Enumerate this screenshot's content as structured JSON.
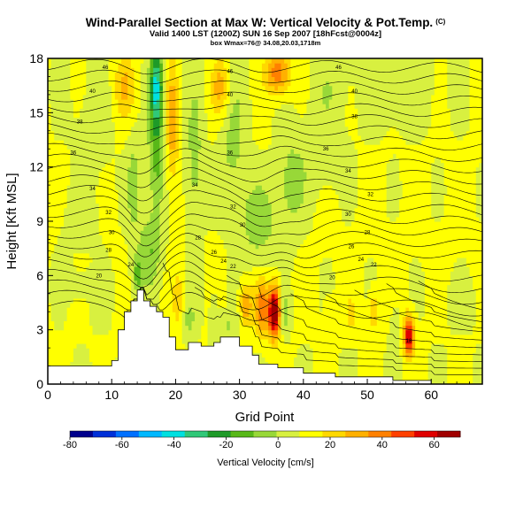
{
  "header": {
    "title": "Wind-Parallel Section at Max W: Vertical Velocity & Pot.Temp.",
    "title_mark": "(C)",
    "subtitle": "Valid 1400 LST (1200Z) SUN 16 Sep 2007 [18hFcst@0004z]",
    "subtitle2": "box Wmax=76@ 34.08,20.03,1718m"
  },
  "chart_data": {
    "type": "heatmap",
    "xlabel": "Grid Point",
    "ylabel": "Height [Kft MSL]",
    "xlim": [
      0,
      68
    ],
    "ylim": [
      0,
      18
    ],
    "xticks": [
      0,
      10,
      20,
      30,
      40,
      50,
      60
    ],
    "yticks": [
      0,
      3,
      6,
      9,
      12,
      15,
      18
    ],
    "colorbar": {
      "label": "Vertical Velocity [cm/s]",
      "ticks": [
        -80,
        -60,
        -40,
        -20,
        0,
        20,
        40,
        60
      ],
      "range": [
        -80,
        70
      ],
      "colors": [
        "#00008c",
        "#0030d8",
        "#0070ff",
        "#00b8ff",
        "#00e0e0",
        "#30c878",
        "#1e9a28",
        "#58b818",
        "#98d838",
        "#d8f040",
        "#ffff00",
        "#ffd800",
        "#ffb000",
        "#ff8000",
        "#ff4000",
        "#e00000",
        "#a00000"
      ]
    },
    "terrain": [
      [
        0,
        1
      ],
      [
        10,
        1
      ],
      [
        10,
        1.3
      ],
      [
        11,
        1.3
      ],
      [
        11,
        3
      ],
      [
        12,
        3
      ],
      [
        12,
        4
      ],
      [
        13,
        4
      ],
      [
        13,
        4.6
      ],
      [
        14,
        4.6
      ],
      [
        14,
        5.2
      ],
      [
        15,
        5.2
      ],
      [
        15,
        4.6
      ],
      [
        16,
        4.6
      ],
      [
        16,
        4.3
      ],
      [
        17,
        4.3
      ],
      [
        17,
        4
      ],
      [
        18,
        4
      ],
      [
        18,
        3.7
      ],
      [
        19,
        3.7
      ],
      [
        19,
        2.6
      ],
      [
        20,
        2.6
      ],
      [
        20,
        1.9
      ],
      [
        22,
        1.9
      ],
      [
        22,
        2.3
      ],
      [
        24,
        2.3
      ],
      [
        24,
        2.1
      ],
      [
        26,
        2.1
      ],
      [
        26,
        2.3
      ],
      [
        27,
        2.3
      ],
      [
        27,
        2.6
      ],
      [
        30,
        2.6
      ],
      [
        30,
        2.1
      ],
      [
        32,
        2.1
      ],
      [
        32,
        1.6
      ],
      [
        33,
        1.6
      ],
      [
        33,
        1.1
      ],
      [
        36,
        1.1
      ],
      [
        36,
        0.9
      ],
      [
        40,
        0.9
      ],
      [
        40,
        0.6
      ],
      [
        45,
        0.6
      ],
      [
        45,
        0.4
      ],
      [
        54,
        0.4
      ],
      [
        54,
        0.2
      ],
      [
        60,
        0.2
      ],
      [
        60,
        0
      ],
      [
        68,
        0
      ]
    ],
    "w_features": [
      {
        "x": 17,
        "z": 16.5,
        "w": -45,
        "sx": 1.0,
        "sz": 2.2
      },
      {
        "x": 17,
        "z": 12.5,
        "w": -22,
        "sx": 1.3,
        "sz": 3.0
      },
      {
        "x": 13.5,
        "z": 11,
        "w": -14,
        "sx": 1.2,
        "sz": 2.8
      },
      {
        "x": 16,
        "z": 7.5,
        "w": -18,
        "sx": 1.8,
        "sz": 2.0
      },
      {
        "x": 19.5,
        "z": 14.5,
        "w": 22,
        "sx": 1.0,
        "sz": 3.5
      },
      {
        "x": 12,
        "z": 16.5,
        "w": 18,
        "sx": 1.6,
        "sz": 1.8
      },
      {
        "x": 27,
        "z": 16.5,
        "w": 22,
        "sx": 1.4,
        "sz": 1.6
      },
      {
        "x": 36,
        "z": 17.2,
        "w": 32,
        "sx": 2.0,
        "sz": 1.2
      },
      {
        "x": 23,
        "z": 12,
        "w": -14,
        "sx": 1.4,
        "sz": 4.5
      },
      {
        "x": 29,
        "z": 13,
        "w": -12,
        "sx": 2.2,
        "sz": 4.0
      },
      {
        "x": 33,
        "z": 9,
        "w": -16,
        "sx": 2.8,
        "sz": 2.2
      },
      {
        "x": 38,
        "z": 11,
        "w": -14,
        "sx": 2.2,
        "sz": 2.8
      },
      {
        "x": 43,
        "z": 13,
        "w": -8,
        "sx": 3.5,
        "sz": 2.5
      },
      {
        "x": 44,
        "z": 16.5,
        "w": -6,
        "sx": 3.0,
        "sz": 1.5
      },
      {
        "x": 55,
        "z": 16,
        "w": -6,
        "sx": 6.0,
        "sz": 2.0
      },
      {
        "x": 7,
        "z": 14,
        "w": -6,
        "sx": 3.0,
        "sz": 3.0
      },
      {
        "x": 5,
        "z": 9,
        "w": -5,
        "sx": 4.0,
        "sz": 2.0
      },
      {
        "x": 5,
        "z": 5.5,
        "w": -8,
        "sx": 4.0,
        "sz": 0.8
      },
      {
        "x": 35.5,
        "z": 4.0,
        "w": 68,
        "sx": 0.9,
        "sz": 1.4
      },
      {
        "x": 33.5,
        "z": 4.2,
        "w": 32,
        "sx": 1.2,
        "sz": 1.4
      },
      {
        "x": 31,
        "z": 4.4,
        "w": 26,
        "sx": 0.9,
        "sz": 1.2
      },
      {
        "x": 37,
        "z": 4.0,
        "w": -14,
        "sx": 0.8,
        "sz": 1.3
      },
      {
        "x": 56.5,
        "z": 2.7,
        "w": 55,
        "sx": 0.8,
        "sz": 1.1
      },
      {
        "x": 54.5,
        "z": 3.0,
        "w": -10,
        "sx": 0.8,
        "sz": 1.2
      },
      {
        "x": 51,
        "z": 4.0,
        "w": 18,
        "sx": 0.8,
        "sz": 1.1
      },
      {
        "x": 47.5,
        "z": 3.8,
        "w": 12,
        "sx": 0.7,
        "sz": 1.0
      },
      {
        "x": 44,
        "z": 3.8,
        "w": 8,
        "sx": 0.8,
        "sz": 1.0
      },
      {
        "x": 28,
        "z": 3.2,
        "w": -10,
        "sx": 1.8,
        "sz": 0.8
      },
      {
        "x": 26,
        "z": 4.2,
        "w": -8,
        "sx": 0.7,
        "sz": 1.1
      },
      {
        "x": 22,
        "z": 3.6,
        "w": -12,
        "sx": 1.2,
        "sz": 1.0
      },
      {
        "x": 20.5,
        "z": 4.6,
        "w": 16,
        "sx": 0.9,
        "sz": 1.4
      },
      {
        "x": 14,
        "z": 6,
        "w": -20,
        "sx": 0.9,
        "sz": 1.0
      },
      {
        "x": 8,
        "z": 4.2,
        "w": -5,
        "sx": 1.5,
        "sz": 1.0
      },
      {
        "x": 65,
        "z": 4.5,
        "w": -6,
        "sx": 2.5,
        "sz": 1.2
      }
    ],
    "theta_contour_labels": [
      {
        "x": 9,
        "z": 17.5,
        "t": "46"
      },
      {
        "x": 28.5,
        "z": 17.3,
        "t": "46"
      },
      {
        "x": 45.5,
        "z": 17.5,
        "t": "46"
      },
      {
        "x": 7,
        "z": 16.2,
        "t": "40"
      },
      {
        "x": 28.5,
        "z": 16.0,
        "t": "40"
      },
      {
        "x": 48,
        "z": 16.2,
        "t": "40"
      },
      {
        "x": 5,
        "z": 14.5,
        "t": "38"
      },
      {
        "x": 48,
        "z": 14.8,
        "t": "38"
      },
      {
        "x": 4,
        "z": 12.8,
        "t": "36"
      },
      {
        "x": 28.5,
        "z": 12.8,
        "t": "36"
      },
      {
        "x": 43.5,
        "z": 13.0,
        "t": "36"
      },
      {
        "x": 7,
        "z": 10.8,
        "t": "34"
      },
      {
        "x": 23,
        "z": 11.0,
        "t": "34"
      },
      {
        "x": 47,
        "z": 11.8,
        "t": "34"
      },
      {
        "x": 50.5,
        "z": 10.5,
        "t": "32"
      },
      {
        "x": 9.5,
        "z": 9.5,
        "t": "32"
      },
      {
        "x": 29,
        "z": 9.8,
        "t": "32"
      },
      {
        "x": 47,
        "z": 9.4,
        "t": "30"
      },
      {
        "x": 10,
        "z": 8.4,
        "t": "30"
      },
      {
        "x": 30.5,
        "z": 8.8,
        "t": "30"
      },
      {
        "x": 50,
        "z": 8.4,
        "t": "28"
      },
      {
        "x": 23.5,
        "z": 8.1,
        "t": "28"
      },
      {
        "x": 9.5,
        "z": 7.4,
        "t": "28"
      },
      {
        "x": 26,
        "z": 7.3,
        "t": "26"
      },
      {
        "x": 47.5,
        "z": 7.6,
        "t": "26"
      },
      {
        "x": 27.5,
        "z": 6.8,
        "t": "24"
      },
      {
        "x": 49,
        "z": 6.9,
        "t": "24"
      },
      {
        "x": 13,
        "z": 6.6,
        "t": "24"
      },
      {
        "x": 29,
        "z": 6.5,
        "t": "22"
      },
      {
        "x": 51,
        "z": 6.6,
        "t": "22"
      },
      {
        "x": 8,
        "z": 6.0,
        "t": "20"
      },
      {
        "x": 44.5,
        "z": 5.9,
        "t": "20"
      },
      {
        "x": 56.5,
        "z": 2.4,
        "t": "18"
      }
    ]
  }
}
